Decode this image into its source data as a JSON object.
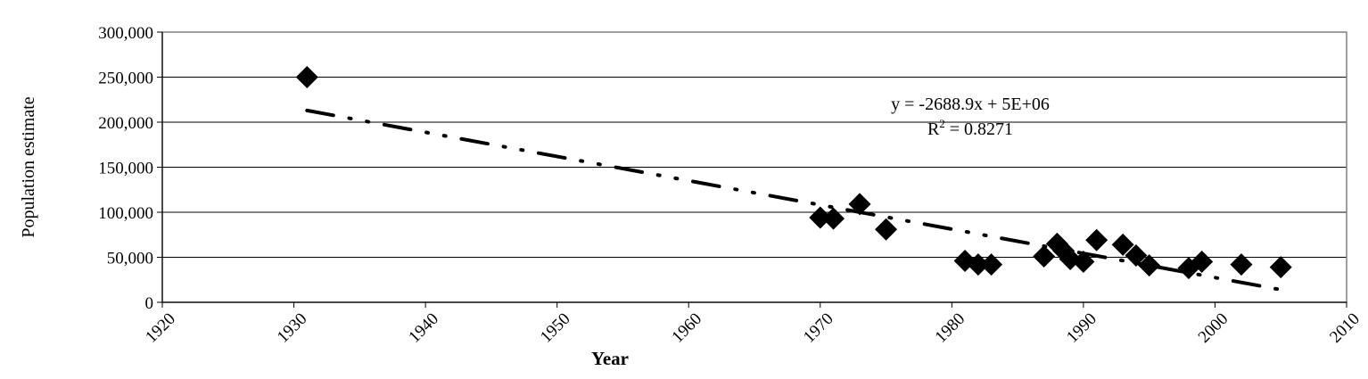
{
  "chart_data": {
    "type": "scatter",
    "xlabel": "Year",
    "ylabel": "Population estimate",
    "xlim": [
      1920,
      2010
    ],
    "ylim": [
      0,
      300000
    ],
    "x_ticks": [
      1920,
      1930,
      1940,
      1950,
      1960,
      1970,
      1980,
      1990,
      2000,
      2010
    ],
    "x_tick_labels": [
      "1920",
      "1930",
      "1940",
      "1950",
      "1960",
      "1970",
      "1980",
      "1990",
      "2000",
      "2010"
    ],
    "y_ticks": [
      0,
      50000,
      100000,
      150000,
      200000,
      250000,
      300000
    ],
    "y_tick_labels": [
      "0",
      "50,000",
      "100,000",
      "150,000",
      "200,000",
      "250,000",
      "300,000"
    ],
    "grid": "horizontal",
    "legend": "none",
    "marker": "diamond",
    "marker_color": "#000000",
    "points": [
      {
        "x": 1931,
        "y": 250000
      },
      {
        "x": 1970,
        "y": 94000
      },
      {
        "x": 1971,
        "y": 93000
      },
      {
        "x": 1973,
        "y": 109000
      },
      {
        "x": 1975,
        "y": 81000
      },
      {
        "x": 1981,
        "y": 46000
      },
      {
        "x": 1982,
        "y": 42000
      },
      {
        "x": 1983,
        "y": 42000
      },
      {
        "x": 1987,
        "y": 51000
      },
      {
        "x": 1988,
        "y": 65000
      },
      {
        "x": 1988.5,
        "y": 57000
      },
      {
        "x": 1989,
        "y": 48000
      },
      {
        "x": 1990,
        "y": 45000
      },
      {
        "x": 1991,
        "y": 69000
      },
      {
        "x": 1993,
        "y": 64000
      },
      {
        "x": 1994,
        "y": 52000
      },
      {
        "x": 1995,
        "y": 41000
      },
      {
        "x": 1998,
        "y": 38000
      },
      {
        "x": 1999,
        "y": 45000
      },
      {
        "x": 2002,
        "y": 42000
      },
      {
        "x": 2005,
        "y": 39000
      }
    ],
    "trendline": {
      "type": "linear",
      "style": "dash-dot-dot",
      "color": "#000000",
      "x_start": 1931,
      "y_start": 213000,
      "x_end": 2005,
      "y_end": 14000
    },
    "annotations": {
      "equation": "y = -2688.9x + 5E+06",
      "r_squared_prefix": "R",
      "r_squared_sup": "2",
      "r_squared_suffix": " = 0.8271"
    }
  }
}
